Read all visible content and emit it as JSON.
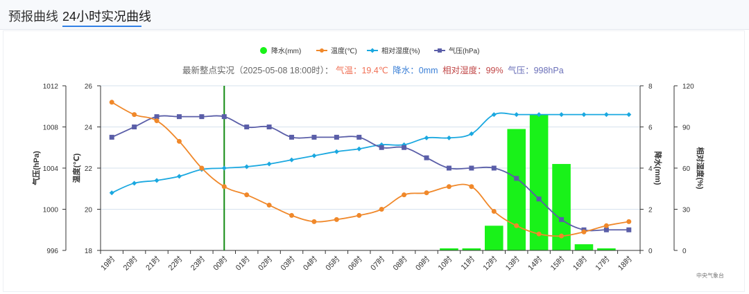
{
  "tabs": [
    {
      "label": "预报曲线",
      "active": false
    },
    {
      "label": "24小时实况曲线",
      "active": true
    }
  ],
  "summary": {
    "prefix": "最新整点实况（2025-05-08 18:00时）：",
    "temp": "气温：19.4℃",
    "precip": "降水：0mm",
    "humidity": "相对湿度：99%",
    "pressure": "气压：998hPa"
  },
  "source_label": "中央气象台",
  "colors": {
    "precip": "#19f219",
    "temp": "#f0882a",
    "humidity": "#1aa8e0",
    "pressure": "#5a5ea8",
    "now_line": "#118a11",
    "summary_temp": "#f07055",
    "summary_precip": "#3a7fd6",
    "summary_humidity": "#c04545",
    "summary_pressure": "#6a6fb8"
  },
  "chart_data": {
    "type": "line",
    "categories": [
      "19时",
      "20时",
      "21时",
      "22时",
      "23时",
      "00时",
      "01时",
      "02时",
      "03时",
      "04时",
      "05时",
      "06时",
      "07时",
      "08时",
      "09时",
      "10时",
      "11时",
      "12时",
      "13时",
      "14时",
      "15时",
      "16时",
      "17时",
      "18时"
    ],
    "series": [
      {
        "name": "降水(mm)",
        "type": "bar",
        "axis": "precip",
        "values": [
          0,
          0,
          0,
          0,
          0,
          0,
          0,
          0,
          0,
          0,
          0,
          0,
          0,
          0,
          0,
          0.1,
          0.1,
          1.2,
          5.9,
          6.6,
          4.2,
          0.3,
          0.1,
          0
        ]
      },
      {
        "name": "温度(℃)",
        "type": "line",
        "axis": "temp",
        "values": [
          25.2,
          24.6,
          24.3,
          23.3,
          22.0,
          21.1,
          20.7,
          20.2,
          19.7,
          19.4,
          19.5,
          19.7,
          20.0,
          20.7,
          20.8,
          21.1,
          21.1,
          19.9,
          19.2,
          18.8,
          18.7,
          18.9,
          19.2,
          19.4
        ]
      },
      {
        "name": "相对湿度(%)",
        "type": "line",
        "axis": "humidity",
        "values": [
          42,
          49,
          51,
          54,
          59,
          60,
          61,
          63,
          66,
          69,
          72,
          74,
          77,
          77,
          82,
          82,
          85,
          99,
          99,
          99,
          99,
          99,
          99,
          99
        ]
      },
      {
        "name": "气压(hPa)",
        "type": "line",
        "axis": "pressure",
        "values": [
          1007,
          1008,
          1009,
          1009,
          1009,
          1009,
          1008,
          1008,
          1007,
          1007,
          1007,
          1007,
          1006,
          1006,
          1005,
          1004,
          1004,
          1004,
          1003,
          1001,
          999,
          998,
          998,
          998
        ]
      }
    ],
    "axes": {
      "pressure": {
        "label": "气压(hPa)",
        "range": [
          996,
          1012
        ],
        "ticks": [
          996,
          1000,
          1004,
          1008,
          1012
        ]
      },
      "temp": {
        "label": "温度(℃)",
        "range": [
          18,
          26
        ],
        "ticks": [
          18,
          20,
          22,
          24,
          26
        ]
      },
      "precip": {
        "label": "降水(mm)",
        "range": [
          0,
          8
        ],
        "ticks": [
          0,
          2,
          4,
          6,
          8
        ]
      },
      "humidity": {
        "label": "相对湿度(%)",
        "range": [
          0,
          120
        ],
        "ticks": [
          0,
          30,
          60,
          90,
          120
        ]
      }
    },
    "current_marker": "00时",
    "grid": true,
    "legend_position": "top-center"
  }
}
